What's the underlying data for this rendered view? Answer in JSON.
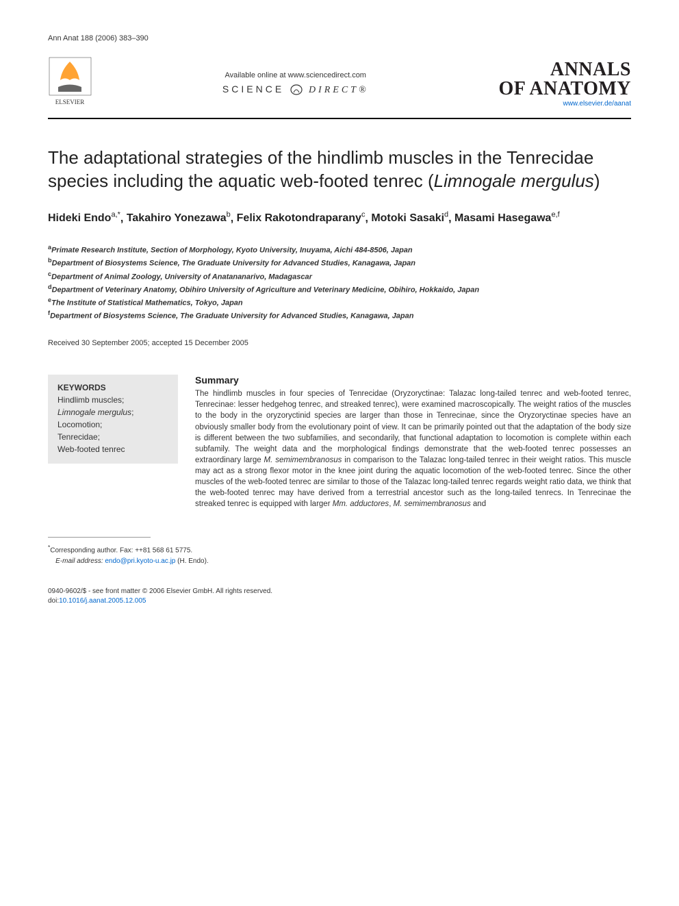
{
  "header_ref": "Ann Anat 188 (2006) 383–390",
  "sciencedirect": {
    "available": "Available online at www.sciencedirect.com",
    "logo_left": "SCIENCE",
    "logo_right": "DIRECT®"
  },
  "journal": {
    "line1": "ANNALS",
    "line2": "OF ANATOMY",
    "url": "www.elsevier.de/aanat"
  },
  "title": {
    "part1": "The adaptational strategies of the hindlimb muscles in the Tenrecidae species including the aquatic web-footed tenrec (",
    "italic": "Limnogale mergulus",
    "part2": ")"
  },
  "authors": [
    {
      "name": "Hideki Endo",
      "sup": "a,*"
    },
    {
      "name": "Takahiro Yonezawa",
      "sup": "b"
    },
    {
      "name": "Felix Rakotondraparany",
      "sup": "c"
    },
    {
      "name": "Motoki Sasaki",
      "sup": "d"
    },
    {
      "name": "Masami Hasegawa",
      "sup": "e,f"
    }
  ],
  "affiliations": [
    {
      "sup": "a",
      "text": "Primate Research Institute, Section of Morphology, Kyoto University, Inuyama, Aichi 484-8506, Japan"
    },
    {
      "sup": "b",
      "text": "Department of Biosystems Science, The Graduate University for Advanced Studies, Kanagawa, Japan"
    },
    {
      "sup": "c",
      "text": "Department of Animal Zoology, University of Anatananarivo, Madagascar"
    },
    {
      "sup": "d",
      "text": "Department of Veterinary Anatomy, Obihiro University of Agriculture and Veterinary Medicine, Obihiro, Hokkaido, Japan"
    },
    {
      "sup": "e",
      "text": "The Institute of Statistical Mathematics, Tokyo, Japan"
    },
    {
      "sup": "f",
      "text": "Department of Biosystems Science, The Graduate University for Advanced Studies, Kanagawa, Japan"
    }
  ],
  "dates": "Received 30 September 2005; accepted 15 December 2005",
  "keywords": {
    "heading": "KEYWORDS",
    "items": [
      {
        "text": "Hindlimb muscles;"
      },
      {
        "text": "Limnogale mergulus",
        "italic": true,
        "suffix": ";"
      },
      {
        "text": "Locomotion;"
      },
      {
        "text": "Tenrecidae;"
      },
      {
        "text": "Web-footed tenrec"
      }
    ]
  },
  "summary": {
    "heading": "Summary",
    "text_parts": [
      {
        "t": "The hindlimb muscles in four species of Tenrecidae (Oryzoryctinae: Talazac long-tailed tenrec and web-footed tenrec, Tenrecinae: lesser hedgehog tenrec, and streaked tenrec), were examined macroscopically. The weight ratios of the muscles to the body in the oryzoryctinid species are larger than those in Tenrecinae, since the Oryzoryctinae species have an obviously smaller body from the evolutionary point of view. It can be primarily pointed out that the adaptation of the body size is different between the two subfamilies, and secondarily, that functional adaptation to locomotion is complete within each subfamily. The weight data and the morphological findings demonstrate that the web-footed tenrec possesses an extraordinary large "
      },
      {
        "t": "M. semimembranosus",
        "i": true
      },
      {
        "t": " in comparison to the Talazac long-tailed tenrec in their weight ratios. This muscle may act as a strong flexor motor in the knee joint during the aquatic locomotion of the web-footed tenrec. Since the other muscles of the web-footed tenrec are similar to those of the Talazac long-tailed tenrec regards weight ratio data, we think that the web-footed tenrec may have derived from a terrestrial ancestor such as the long-tailed tenrecs. In Tenrecinae the streaked tenrec is equipped with larger "
      },
      {
        "t": "Mm. adductores",
        "i": true
      },
      {
        "t": ", "
      },
      {
        "t": "M. semimembranosus",
        "i": true
      },
      {
        "t": " and"
      }
    ]
  },
  "corresponding": {
    "star": "*",
    "label": "Corresponding author. Fax: ++81 568 61 5775.",
    "email_label": "E-mail address:",
    "email": "endo@pri.kyoto-u.ac.jp",
    "email_suffix": " (H. Endo)."
  },
  "copyright": {
    "line1": "0940-9602/$ - see front matter © 2006 Elsevier GmbH. All rights reserved.",
    "doi_prefix": "doi:",
    "doi": "10.1016/j.aanat.2005.12.005"
  },
  "colors": {
    "link": "#0066cc",
    "text": "#333333",
    "keyword_bg": "#e8e8e8",
    "elsevier_orange": "#ff8c00"
  }
}
